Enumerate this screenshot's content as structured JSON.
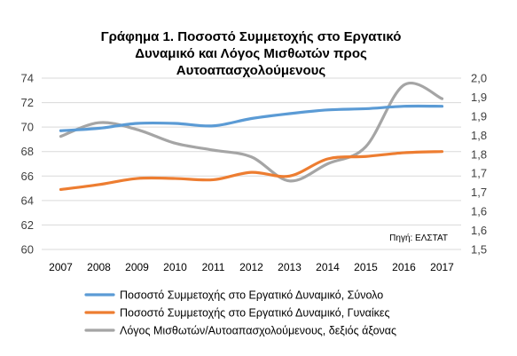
{
  "chart_data": {
    "type": "line",
    "title_lines": [
      "Γράφημα 1. Ποσοστό Συμμετοχής στο Εργατικό",
      "Δυναμικό και Λόγος Μισθωτών προς",
      "Αυτοαπασχολούμενους"
    ],
    "source": "Πηγή: ΕΛΣΤΑΤ",
    "x": [
      "2007",
      "2008",
      "2009",
      "2010",
      "2011",
      "2012",
      "2013",
      "2014",
      "2015",
      "2016",
      "2017"
    ],
    "y_left": {
      "ticks": [
        "60",
        "62",
        "64",
        "66",
        "68",
        "70",
        "72",
        "74"
      ],
      "min": 60,
      "max": 74
    },
    "y_right": {
      "ticks": [
        "1,5",
        "1,6",
        "1,6",
        "1,7",
        "1,7",
        "1,8",
        "1,8",
        "1,9",
        "1,9",
        "2,0"
      ],
      "min": 1.5,
      "max": 2.0
    },
    "grid": true,
    "legend_position": "bottom",
    "series": [
      {
        "name": "Ποσοστό Συμμετοχής στο Εργατικό Δυναμικό, Σύνολο",
        "axis": "left",
        "color": "#5B9BD5",
        "values": [
          69.7,
          69.9,
          70.3,
          70.3,
          70.1,
          70.7,
          71.1,
          71.4,
          71.5,
          71.7,
          71.7
        ]
      },
      {
        "name": "Ποσοστό Συμμετοχής στο Εργατικό Δυναμικό, Γυναίκες",
        "axis": "left",
        "color": "#ED7D31",
        "values": [
          64.9,
          65.3,
          65.8,
          65.8,
          65.7,
          66.3,
          66.0,
          67.4,
          67.6,
          67.9,
          68.0
        ]
      },
      {
        "name": "Λόγος Μισθωτών/Αυτοαπασχολούμενους,  δεξιός άξονας",
        "axis": "right",
        "color": "#A5A5A5",
        "values": [
          1.83,
          1.87,
          1.85,
          1.81,
          1.79,
          1.77,
          1.7,
          1.75,
          1.8,
          1.98,
          1.94
        ]
      }
    ]
  }
}
